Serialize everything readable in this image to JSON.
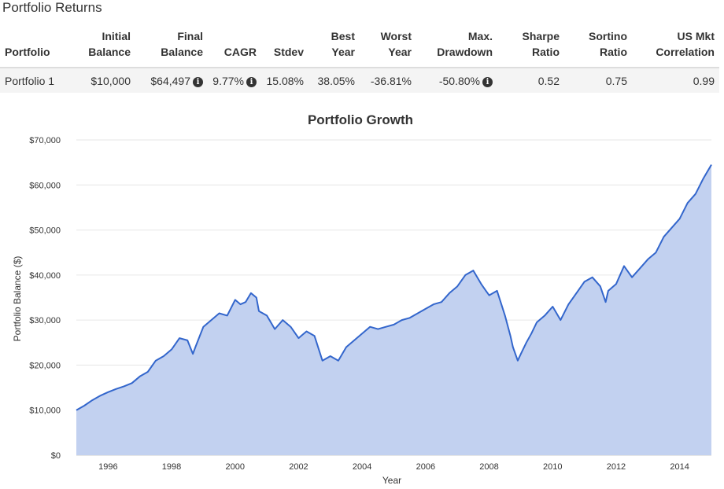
{
  "section_title": "Portfolio Returns",
  "table": {
    "headers": [
      {
        "line1": "",
        "line2": "Portfolio"
      },
      {
        "line1": "Initial",
        "line2": "Balance"
      },
      {
        "line1": "Final",
        "line2": "Balance"
      },
      {
        "line1": "",
        "line2": "CAGR"
      },
      {
        "line1": "",
        "line2": "Stdev"
      },
      {
        "line1": "Best",
        "line2": "Year"
      },
      {
        "line1": "Worst",
        "line2": "Year"
      },
      {
        "line1": "Max.",
        "line2": "Drawdown"
      },
      {
        "line1": "Sharpe",
        "line2": "Ratio"
      },
      {
        "line1": "Sortino",
        "line2": "Ratio"
      },
      {
        "line1": "US Mkt",
        "line2": "Correlation"
      }
    ],
    "rows": [
      {
        "portfolio": "Portfolio 1",
        "initial_balance": "$10,000",
        "final_balance": "$64,497",
        "cagr": "9.77%",
        "stdev": "15.08%",
        "best_year": "38.05%",
        "worst_year": "-36.81%",
        "max_drawdown": "-50.80%",
        "sharpe": "0.52",
        "sortino": "0.75",
        "us_mkt_correlation": "0.99"
      }
    ],
    "info_icon_glyph": "i"
  },
  "chart_data": {
    "type": "area",
    "title": "Portfolio Growth",
    "xlabel": "Year",
    "ylabel": "Portfolio Balance ($)",
    "xlim": [
      1995.0,
      2015.0
    ],
    "ylim": [
      0,
      70000
    ],
    "x_ticks": [
      1996,
      1998,
      2000,
      2002,
      2004,
      2006,
      2008,
      2010,
      2012,
      2014
    ],
    "y_ticks": [
      0,
      10000,
      20000,
      30000,
      40000,
      50000,
      60000,
      70000
    ],
    "y_tick_labels": [
      "$0",
      "$10,000",
      "$20,000",
      "$30,000",
      "$40,000",
      "$50,000",
      "$60,000",
      "$70,000"
    ],
    "grid": true,
    "line_color": "#3366cc",
    "fill_color": "#c2d1f0",
    "series": [
      {
        "x": [
          1995.0,
          1995.25,
          1995.5,
          1995.75,
          1996.0,
          1996.25,
          1996.5,
          1996.75,
          1997.0,
          1997.25,
          1997.5,
          1997.75,
          1998.0,
          1998.25,
          1998.5,
          1998.67,
          1998.75,
          1999.0,
          1999.25,
          1999.5,
          1999.75,
          2000.0,
          2000.17,
          2000.33,
          2000.5,
          2000.67,
          2000.75,
          2001.0,
          2001.25,
          2001.5,
          2001.75,
          2002.0,
          2002.25,
          2002.5,
          2002.75,
          2003.0,
          2003.25,
          2003.5,
          2003.75,
          2004.0,
          2004.25,
          2004.5,
          2004.75,
          2005.0,
          2005.25,
          2005.5,
          2005.75,
          2006.0,
          2006.25,
          2006.5,
          2006.75,
          2007.0,
          2007.25,
          2007.5,
          2007.75,
          2007.9,
          2008.0,
          2008.25,
          2008.5,
          2008.67,
          2008.75,
          2008.9,
          2009.0,
          2009.17,
          2009.33,
          2009.5,
          2009.75,
          2010.0,
          2010.25,
          2010.5,
          2010.75,
          2011.0,
          2011.25,
          2011.5,
          2011.67,
          2011.75,
          2012.0,
          2012.25,
          2012.5,
          2012.75,
          2013.0,
          2013.25,
          2013.5,
          2013.75,
          2014.0,
          2014.25,
          2014.5,
          2014.75,
          2015.0
        ],
        "values": [
          10000,
          11000,
          12200,
          13200,
          14000,
          14700,
          15300,
          16000,
          17500,
          18500,
          21000,
          22000,
          23500,
          26000,
          25500,
          22500,
          24000,
          28500,
          30000,
          31500,
          31000,
          34500,
          33500,
          34000,
          36000,
          35000,
          32000,
          31000,
          28000,
          30000,
          28500,
          26000,
          27500,
          26500,
          21000,
          22000,
          21000,
          24000,
          25500,
          27000,
          28500,
          28000,
          28500,
          29000,
          30000,
          30500,
          31500,
          32500,
          33500,
          34000,
          36000,
          37500,
          40000,
          41000,
          38000,
          36500,
          35500,
          36500,
          31000,
          26500,
          24000,
          21000,
          22500,
          25000,
          27000,
          29500,
          31000,
          33000,
          30000,
          33500,
          36000,
          38500,
          39500,
          37500,
          34000,
          36500,
          38000,
          42000,
          39500,
          41500,
          43500,
          45000,
          48500,
          50500,
          52500,
          56000,
          58000,
          61500,
          64500
        ]
      }
    ]
  }
}
